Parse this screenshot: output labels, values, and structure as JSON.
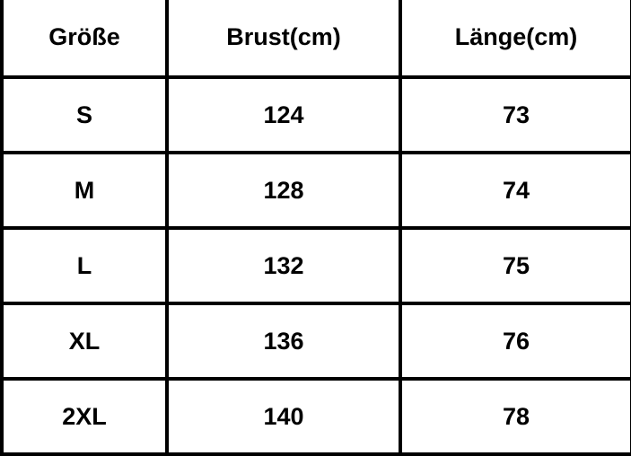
{
  "table": {
    "headers": [
      "Größe",
      "Brust(cm)",
      "Länge(cm)"
    ],
    "rows": [
      [
        "S",
        "124",
        "73"
      ],
      [
        "M",
        "128",
        "74"
      ],
      [
        "L",
        "132",
        "75"
      ],
      [
        "XL",
        "136",
        "76"
      ],
      [
        "2XL",
        "140",
        "78"
      ]
    ]
  }
}
